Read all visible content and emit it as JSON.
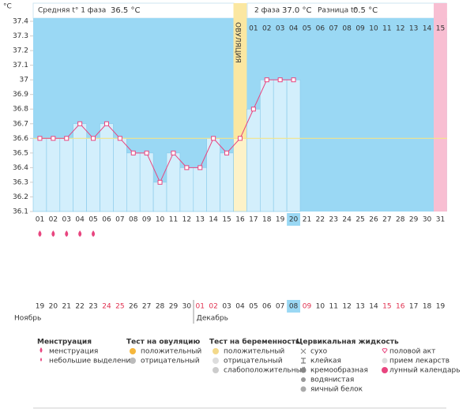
{
  "header": {
    "unit": "°C",
    "phase1": "Средняя t° 1 фаза",
    "phase1_value": "36.5 °C",
    "phase2": "2 фаза",
    "phase2_value": "37.0 °C",
    "diff": "Разница t°",
    "diff_value": "0.5 °C",
    "ovulation": "ОВУЛЯЦИЯ"
  },
  "chart_data": {
    "type": "line",
    "categories": [
      "01",
      "02",
      "03",
      "04",
      "05",
      "06",
      "07",
      "08",
      "09",
      "10",
      "11",
      "12",
      "13",
      "14",
      "15",
      "16",
      "17",
      "18",
      "19",
      "20",
      "21",
      "22",
      "23",
      "24",
      "25",
      "26",
      "27",
      "28",
      "29",
      "30",
      "31"
    ],
    "values": [
      36.6,
      36.6,
      36.6,
      36.7,
      36.6,
      36.7,
      36.6,
      36.5,
      36.5,
      36.3,
      36.5,
      36.4,
      36.4,
      36.6,
      36.5,
      36.6,
      36.8,
      37.0,
      37.0,
      37.0,
      null,
      null,
      null,
      null,
      null,
      null,
      null,
      null,
      null,
      null,
      null
    ],
    "color": "#e8457f",
    "ylim": [
      36.1,
      37.4
    ],
    "yticks": [
      36.1,
      36.2,
      36.3,
      36.4,
      36.5,
      36.6,
      36.7,
      36.8,
      36.9,
      37,
      37.1,
      37.2,
      37.3,
      37.4
    ],
    "grid": false,
    "coverline": 36.6,
    "ovulation_day": 16,
    "today": 20,
    "phase2_days": [
      "01",
      "02",
      "03",
      "04",
      "05",
      "06",
      "07",
      "08",
      "09",
      "10",
      "11",
      "12",
      "13",
      "14",
      "15"
    ],
    "menstruation_days": [
      1,
      2,
      3,
      4,
      5
    ]
  },
  "calendar": {
    "dates": [
      "19",
      "20",
      "21",
      "22",
      "23",
      "24",
      "25",
      "26",
      "27",
      "28",
      "29",
      "30",
      "01",
      "02",
      "03",
      "04",
      "05",
      "06",
      "07",
      "08",
      "09",
      "10",
      "11",
      "12",
      "13",
      "14",
      "15",
      "16",
      "17",
      "18",
      "19"
    ],
    "red_dates": [
      5,
      6,
      12,
      13,
      20,
      26,
      27
    ],
    "months": [
      "Ноябрь",
      "Декабрь"
    ]
  },
  "legend": {
    "menstruation": {
      "title": "Менструация",
      "items": [
        "менструация",
        "небольшие выделения"
      ]
    },
    "ovulation_test": {
      "title": "Тест на овуляцию",
      "items": [
        "положительный",
        "отрицательный"
      ]
    },
    "pregnancy_test": {
      "title": "Тест на беременность",
      "items": [
        "положительный",
        "отрицательный",
        "слабоположительный"
      ]
    },
    "cervical": {
      "title": "Цервикальная жидкость",
      "items": [
        "сухо",
        "клейкая",
        "кремообразная",
        "водянистая",
        "яичный белок"
      ]
    },
    "other": {
      "items": [
        "половой акт",
        "прием лекарств",
        "лунный календарь"
      ]
    }
  }
}
